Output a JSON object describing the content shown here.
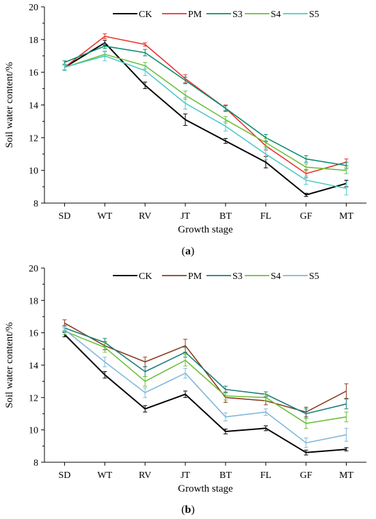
{
  "chart_data": [
    {
      "type": "line",
      "panel_label": "a",
      "xlabel": "Growth stage",
      "ylabel": "Soil water content/%",
      "categories": [
        "SD",
        "WT",
        "RV",
        "JT",
        "BT",
        "FL",
        "GF",
        "MT"
      ],
      "ylim": [
        8,
        20
      ],
      "yticks": [
        "8",
        "10",
        "12",
        "14",
        "16",
        "18",
        "20"
      ],
      "legend_position": "top",
      "series": [
        {
          "name": "CK",
          "color": "#000000",
          "values": [
            16.3,
            17.8,
            15.2,
            13.1,
            11.8,
            10.5,
            8.5,
            9.2
          ],
          "errors": [
            0.15,
            0.15,
            0.2,
            0.35,
            0.15,
            0.35,
            0.1,
            0.2
          ]
        },
        {
          "name": "PM",
          "color": "#e8312f",
          "values": [
            16.3,
            18.2,
            17.7,
            15.6,
            13.8,
            11.5,
            9.8,
            10.5
          ],
          "errors": [
            0.15,
            0.15,
            0.1,
            0.25,
            0.2,
            0.25,
            0.25,
            0.2
          ]
        },
        {
          "name": "S3",
          "color": "#0a8a6e",
          "values": [
            16.6,
            17.6,
            17.2,
            15.5,
            13.8,
            12.0,
            10.7,
            10.3
          ],
          "errors": [
            0.1,
            0.15,
            0.2,
            0.2,
            0.15,
            0.2,
            0.2,
            0.2
          ]
        },
        {
          "name": "S4",
          "color": "#6bbf3a",
          "values": [
            16.3,
            17.1,
            16.4,
            14.6,
            13.1,
            11.7,
            10.2,
            10.0
          ],
          "errors": [
            0.15,
            0.15,
            0.2,
            0.25,
            0.2,
            0.25,
            0.2,
            0.2
          ]
        },
        {
          "name": "S5",
          "color": "#4fc8c8",
          "values": [
            16.3,
            17.0,
            16.1,
            14.1,
            12.7,
            11.0,
            9.4,
            8.9
          ],
          "errors": [
            0.2,
            0.3,
            0.3,
            0.35,
            0.3,
            0.35,
            0.25,
            0.4
          ]
        }
      ]
    },
    {
      "type": "line",
      "panel_label": "b",
      "xlabel": "Growth stage",
      "ylabel": "Soil water content/%",
      "categories": [
        "SD",
        "WT",
        "RV",
        "JT",
        "BT",
        "FL",
        "GF",
        "MT"
      ],
      "ylim": [
        8,
        20
      ],
      "yticks": [
        "8",
        "10",
        "12",
        "14",
        "16",
        "18",
        "20"
      ],
      "legend_position": "top",
      "series": [
        {
          "name": "CK",
          "color": "#000000",
          "values": [
            15.9,
            13.4,
            11.3,
            12.2,
            9.9,
            10.1,
            8.6,
            8.8
          ],
          "errors": [
            0.15,
            0.2,
            0.2,
            0.2,
            0.15,
            0.15,
            0.15,
            0.1
          ]
        },
        {
          "name": "PM",
          "color": "#8b3a1e",
          "values": [
            16.6,
            15.2,
            14.2,
            15.2,
            12.0,
            11.8,
            11.1,
            12.4
          ],
          "errors": [
            0.2,
            0.25,
            0.3,
            0.4,
            0.3,
            0.25,
            0.3,
            0.45
          ]
        },
        {
          "name": "S3",
          "color": "#1a7d7a",
          "values": [
            16.3,
            15.4,
            13.6,
            14.8,
            12.5,
            12.2,
            11.0,
            11.6
          ],
          "errors": [
            0.15,
            0.25,
            0.3,
            0.3,
            0.2,
            0.15,
            0.3,
            0.3
          ]
        },
        {
          "name": "S4",
          "color": "#6bbf3a",
          "values": [
            16.1,
            15.1,
            13.0,
            14.3,
            12.1,
            12.0,
            10.4,
            10.8
          ],
          "errors": [
            0.2,
            0.3,
            0.3,
            0.35,
            0.25,
            0.2,
            0.3,
            0.3
          ]
        },
        {
          "name": "S5",
          "color": "#7fb8d8",
          "values": [
            16.2,
            14.2,
            12.3,
            13.5,
            10.8,
            11.1,
            9.2,
            9.7
          ],
          "errors": [
            0.2,
            0.3,
            0.3,
            0.3,
            0.25,
            0.2,
            0.3,
            0.4
          ]
        }
      ]
    }
  ]
}
